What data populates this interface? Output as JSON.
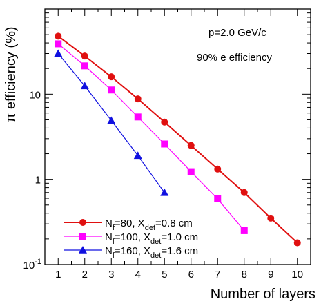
{
  "chart_data": {
    "type": "line",
    "xlabel": "Number of layers",
    "ylabel": "π efficiency (%)",
    "x_ticks": [
      1,
      2,
      3,
      4,
      5,
      6,
      7,
      8,
      9,
      10
    ],
    "y_log": true,
    "ylim": [
      0.1,
      100
    ],
    "xlim": [
      0.5,
      10.5
    ],
    "y_tick_labels": [
      {
        "value": 0.1,
        "base": "10",
        "exp": "-1"
      },
      {
        "value": 1,
        "text": "1"
      },
      {
        "value": 10,
        "text": "10"
      }
    ],
    "annotations": [
      "p=2.0 GeV/c",
      "90% e efficiency"
    ],
    "legend_position": "bottom-left",
    "series": [
      {
        "name": "N_f=80, X_det=0.8 cm",
        "legend": {
          "p1": "N",
          "s1": "f",
          "p2": "=80, X",
          "s2": "det",
          "p3": "=0.8 cm"
        },
        "color": "#e01010",
        "marker": "circle",
        "x": [
          1,
          2,
          3,
          4,
          5,
          6,
          7,
          8,
          9,
          10
        ],
        "y": [
          48,
          28,
          16,
          8.8,
          4.7,
          2.5,
          1.32,
          0.7,
          0.35,
          0.18
        ]
      },
      {
        "name": "N_f=100, X_det=1.0 cm",
        "legend": {
          "p1": "N",
          "s1": "f",
          "p2": "=100, X",
          "s2": "det",
          "p3": "=1.0 cm"
        },
        "color": "#ff00ff",
        "marker": "square",
        "x": [
          1,
          2,
          3,
          4,
          5,
          6,
          7,
          8
        ],
        "y": [
          39,
          21.5,
          11.2,
          5.4,
          2.6,
          1.23,
          0.59,
          0.25
        ]
      },
      {
        "name": "N_f=160, X_det=1.6 cm",
        "legend": {
          "p1": "N",
          "s1": "f",
          "p2": "=160, X",
          "s2": "det",
          "p3": "=1.6 cm"
        },
        "color": "#1010e0",
        "marker": "triangle",
        "x": [
          1,
          2,
          3,
          4,
          5
        ],
        "y": [
          30,
          12.5,
          4.9,
          1.9,
          0.7
        ]
      }
    ]
  }
}
